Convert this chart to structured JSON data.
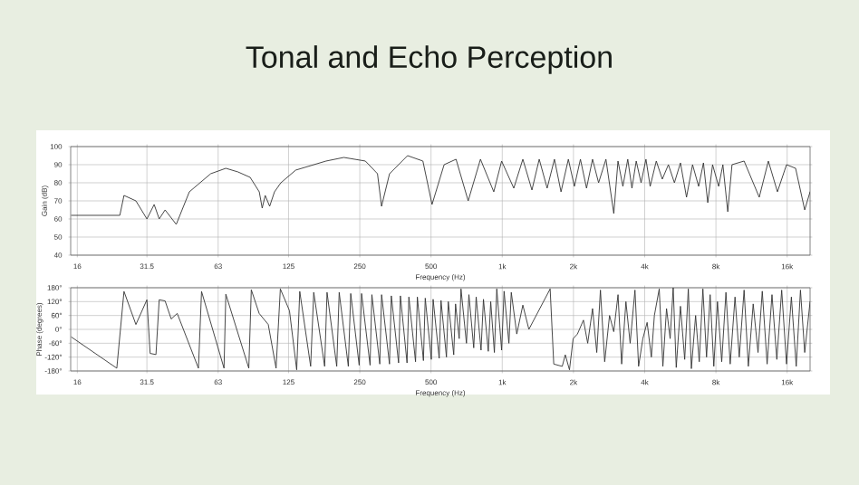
{
  "chart_data": [
    {
      "type": "line",
      "title": "Tonal and Echo Perception",
      "xlabel": "Frequency (Hz)",
      "ylabel": "Gain (dB)",
      "log": "x",
      "grid": true,
      "xlim": [
        15,
        20000
      ],
      "ylim": [
        40,
        100
      ],
      "xticks": [
        16,
        31.5,
        63,
        125,
        250,
        500,
        {
          "value": 1000,
          "label": "1k"
        },
        {
          "value": 2000,
          "label": "2k"
        },
        {
          "value": 4000,
          "label": "4k"
        },
        {
          "value": 8000,
          "label": "8k"
        },
        {
          "value": 16000,
          "label": "16k"
        }
      ],
      "yticks": [
        40,
        50,
        60,
        70,
        80,
        90,
        100
      ],
      "series": [
        {
          "color": "#333333",
          "x": [
            15.1,
            24.2,
            25.2,
            28.3,
            31.5,
            33.8,
            35.5,
            37.6,
            41.9,
            47.6,
            58.6,
            67.9,
            76.4,
            86,
            94,
            96.7,
            99.6,
            104,
            109,
            116,
            134,
            180,
            214,
            264,
            297,
            309,
            334,
            398,
            462,
            505,
            568,
            638,
            718,
            809,
            921,
            994,
            1119,
            1222,
            1335,
            1433,
            1548,
            1662,
            1772,
            1903,
            2018,
            2140,
            2271,
            2408,
            2554,
            2743,
            2961,
            3085,
            3235,
            3392,
            3533,
            3684,
            3862,
            4049,
            4219,
            4477,
            4747,
            5038,
            5341,
            5665,
            6009,
            6373,
            6762,
            7086,
            7389,
            7745,
            8216,
            8560,
            8978,
            9355,
            10524,
            12195,
            13324,
            14558,
            15904,
            17374,
            18982,
            20000
          ],
          "values": [
            62,
            62,
            73,
            70,
            60,
            68,
            60,
            65,
            57,
            75,
            85,
            88,
            86,
            83,
            75,
            66,
            73,
            67,
            75,
            80,
            87,
            92,
            94,
            92,
            85,
            67,
            85,
            95,
            92,
            68,
            90,
            93,
            70,
            93,
            75,
            92,
            77,
            93,
            76,
            93,
            77,
            93,
            75,
            93,
            78,
            93,
            77,
            93,
            80,
            93,
            63,
            92,
            78,
            93,
            77,
            92,
            80,
            93,
            78,
            92,
            82,
            90,
            80,
            91,
            72,
            90,
            78,
            91,
            69,
            90,
            78,
            90,
            64,
            90,
            92,
            72,
            92,
            75,
            90,
            88,
            65,
            75
          ]
        }
      ]
    },
    {
      "type": "line",
      "xlabel": "Frequency (Hz)",
      "ylabel": "Phase (degrees)",
      "log": "x",
      "grid": true,
      "xlim": [
        15,
        20000
      ],
      "ylim": [
        -180,
        180
      ],
      "xticks": [
        16,
        31.5,
        63,
        125,
        250,
        500,
        {
          "value": 1000,
          "label": "1k"
        },
        {
          "value": 2000,
          "label": "2k"
        },
        {
          "value": 4000,
          "label": "4k"
        },
        {
          "value": 8000,
          "label": "8k"
        },
        {
          "value": 16000,
          "label": "16k"
        }
      ],
      "yticks": [
        {
          "value": -180,
          "label": "-180°"
        },
        {
          "value": -120,
          "label": "-120°"
        },
        {
          "value": -60,
          "label": "-60°"
        },
        {
          "value": 0,
          "label": "0°"
        },
        {
          "value": 60,
          "label": "60°"
        },
        {
          "value": 120,
          "label": "120°"
        },
        {
          "value": 180,
          "label": "180°"
        }
      ],
      "series": [
        {
          "color": "#333333",
          "x": [
            15.1,
            23.5,
            25.2,
            28.3,
            31.5,
            32.5,
            34.4,
            35.5,
            37.6,
            39.9,
            42.3,
            52.0,
            53.6,
            66.7,
            67.9,
            84.9,
            87.0,
            93.9,
            102.6,
            110.7,
            115.4,
            126.1,
            135.3,
            139.4,
            155.0,
            159.7,
            177.6,
            181.8,
            199.8,
            204.6,
            223.6,
            228.9,
            248.5,
            254.4,
            276.3,
            281.2,
            303.7,
            309.1,
            333.8,
            339.8,
            364.7,
            371.2,
            396.0,
            403.1,
            430.1,
            437.8,
            464.4,
            472.7,
            501.4,
            510.4,
            541.4,
            551.1,
            581.1,
            591.5,
            623.7,
            634.9,
            657.8,
            669.5,
            706,
            723,
            757.8,
            776,
            813.6,
            832.9,
            873.1,
            894,
            926.3,
            948.3,
            994,
            1018,
            1067,
            1092,
            1152,
            1222,
            1296,
            1594,
            1651,
            1793,
            1847,
            1924,
            1994,
            2079,
            2204,
            2297,
            2408,
            2509,
            2600,
            2710,
            2841,
            2960,
            3086,
            3197,
            3332,
            3472,
            3639,
            3770,
            3929,
            4096,
            4268,
            4395,
            4608,
            4775,
            4947,
            5124,
            5278,
            5437,
            5665,
            5904,
            6116,
            6300,
            6565,
            6802,
            7047,
            7302,
            7564,
            7838,
            8121,
            8464,
            8820,
            9191,
            9634,
            10040,
            10524,
            10968,
            11496,
            12052,
            12560,
            13167,
            13804,
            14471,
            15171,
            15904,
            16672,
            17478,
            18212,
            18982,
            20000
          ],
          "values": [
            -33,
            -168,
            164,
            21,
            128,
            -104,
            -109,
            128,
            123,
            45,
            69,
            -168,
            164,
            -168,
            152,
            -168,
            171,
            69,
            21,
            -168,
            175,
            81,
            -175,
            164,
            -160,
            160,
            -160,
            160,
            -160,
            160,
            -160,
            155,
            -155,
            155,
            -155,
            150,
            -150,
            150,
            -150,
            145,
            -145,
            145,
            -145,
            140,
            -140,
            140,
            -135,
            135,
            -130,
            130,
            -125,
            125,
            -120,
            120,
            -110,
            110,
            -40,
            175,
            -60,
            150,
            -80,
            140,
            -90,
            130,
            -95,
            120,
            -100,
            175,
            -90,
            165,
            -60,
            160,
            -20,
            105,
            0,
            175,
            -150,
            -160,
            -110,
            -175,
            -40,
            -20,
            40,
            -60,
            90,
            -100,
            170,
            -140,
            60,
            -10,
            150,
            -150,
            120,
            -60,
            170,
            -160,
            -40,
            30,
            -120,
            60,
            175,
            -160,
            90,
            -40,
            180,
            -165,
            100,
            -130,
            175,
            -170,
            60,
            -140,
            175,
            -120,
            150,
            -160,
            120,
            -140,
            160,
            -150,
            140,
            -120,
            170,
            -160,
            110,
            -100,
            165,
            -150,
            150,
            -130,
            170,
            -150,
            140,
            -160,
            170,
            -100,
            120
          ]
        }
      ]
    }
  ]
}
